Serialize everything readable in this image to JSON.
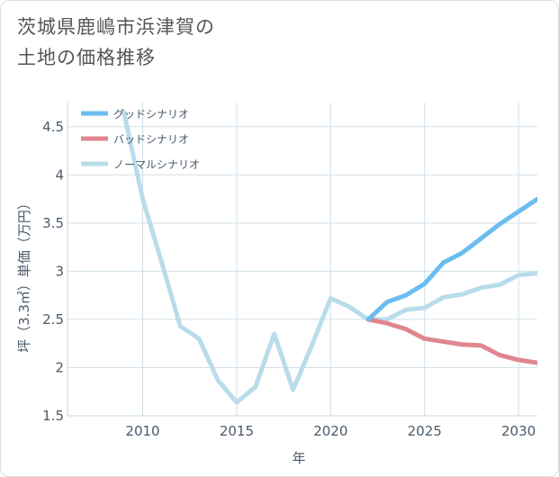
{
  "page": {
    "title_line1": "茨城県鹿嶋市浜津賀の",
    "title_line2": "土地の価格推移"
  },
  "chart_data": {
    "type": "line",
    "xlabel": "年",
    "ylabel": "坪（3.3㎡）単価（万円）",
    "xlim": [
      2006,
      2031
    ],
    "ylim": [
      1.5,
      4.75
    ],
    "xticks": [
      2010,
      2015,
      2020,
      2025,
      2030
    ],
    "yticks": [
      1.5,
      2,
      2.5,
      3,
      3.5,
      4,
      4.5
    ],
    "grid": true,
    "legend_position": "top-left",
    "series": [
      {
        "name": "グッドシナリオ",
        "color": "#6bbcf0",
        "x": [
          2022,
          2023,
          2024,
          2025,
          2026,
          2027,
          2028,
          2029,
          2030,
          2031
        ],
        "values": [
          2.5,
          2.68,
          2.75,
          2.87,
          3.09,
          3.19,
          3.34,
          3.49,
          3.62,
          3.75
        ]
      },
      {
        "name": "バッドシナリオ",
        "color": "#e0868f",
        "x": [
          2022,
          2023,
          2024,
          2025,
          2026,
          2027,
          2028,
          2029,
          2030,
          2031
        ],
        "values": [
          2.5,
          2.46,
          2.4,
          2.3,
          2.27,
          2.24,
          2.23,
          2.13,
          2.08,
          2.05
        ]
      },
      {
        "name": "ノーマルシナリオ",
        "color": "#b9dcea",
        "x": [
          2009,
          2010,
          2011,
          2012,
          2013,
          2014,
          2015,
          2016,
          2017,
          2018,
          2019,
          2020,
          2021,
          2022,
          2023,
          2024,
          2025,
          2026,
          2027,
          2028,
          2029,
          2030,
          2031
        ],
        "values": [
          4.65,
          3.75,
          3.1,
          2.43,
          2.3,
          1.87,
          1.64,
          1.8,
          2.35,
          1.77,
          2.23,
          2.72,
          2.63,
          2.5,
          2.5,
          2.6,
          2.62,
          2.73,
          2.76,
          2.83,
          2.86,
          2.96,
          2.98
        ]
      }
    ]
  }
}
